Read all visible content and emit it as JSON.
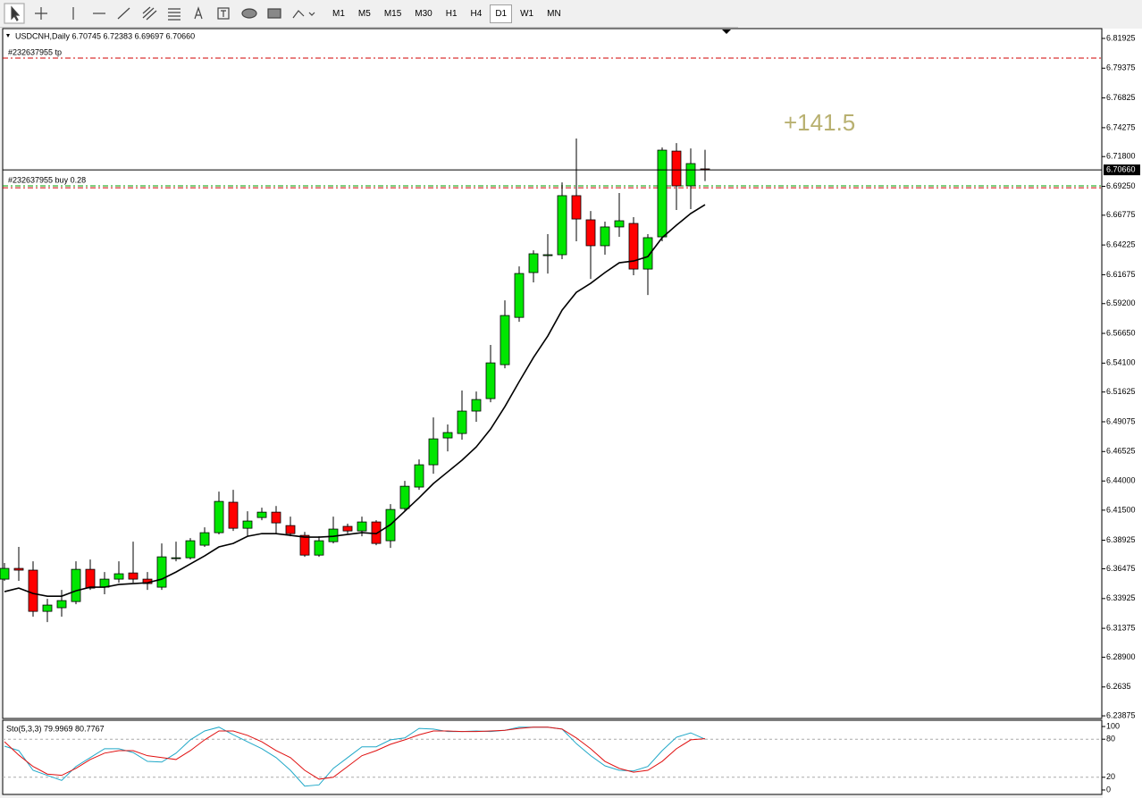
{
  "toolbar": {
    "timeframes": [
      "M1",
      "M5",
      "M15",
      "M30",
      "H1",
      "H4",
      "D1",
      "W1",
      "MN"
    ],
    "active_index": 6
  },
  "chart_data": [
    {
      "type": "candlestick",
      "title": "USDCNH,Daily 6.70745 6.72383 6.69697 6.70660",
      "annotation": "+141.5",
      "ylim": [
        6.2365,
        6.8269
      ],
      "yticks": [
        6.81925,
        6.79375,
        6.76825,
        6.74275,
        {
          "value": 6.718,
          "label": "6.71800"
        },
        {
          "value": 6.6925,
          "label": "6.69250"
        },
        6.66775,
        6.64225,
        6.61675,
        {
          "value": 6.592,
          "label": "6.59200"
        },
        {
          "value": 6.5665,
          "label": "6.56650"
        },
        {
          "value": 6.541,
          "label": "6.54100"
        },
        6.51625,
        6.49075,
        6.46525,
        {
          "value": 6.44,
          "label": "6.44000"
        },
        {
          "value": 6.415,
          "label": "6.41500"
        },
        6.38925,
        6.36475,
        6.33925,
        6.31375,
        {
          "value": 6.289,
          "label": "6.28900"
        },
        6.2635,
        6.23875
      ],
      "up_color": "#00e600",
      "down_color": "#ff0000",
      "open": [
        6.3559,
        6.3651,
        6.3636,
        6.3283,
        6.3314,
        6.3367,
        6.3643,
        6.349,
        6.3559,
        6.3612,
        6.3559,
        6.349,
        6.3735,
        6.3742,
        6.385,
        6.3957,
        6.4218,
        6.3995,
        6.4087,
        6.4133,
        6.4018,
        6.3934,
        6.3765,
        6.388,
        6.4011,
        6.3972,
        6.4049,
        6.3888,
        6.4164,
        6.4348,
        6.4539,
        6.4769,
        6.4807,
        6.4999,
        6.5106,
        6.5397,
        6.5802,
        6.6186,
        6.6331,
        6.6339,
        6.6845,
        6.6638,
        6.6416,
        6.6577,
        6.6607,
        6.6216,
        6.6492,
        6.7227,
        6.6929,
        6.70745
      ],
      "high": [
        6.3697,
        6.3835,
        6.3712,
        6.339,
        6.3467,
        6.3712,
        6.3727,
        6.362,
        6.3712,
        6.388,
        6.362,
        6.3865,
        6.388,
        6.3911,
        6.4003,
        6.4309,
        6.4324,
        6.4141,
        6.4171,
        6.4186,
        6.4095,
        6.3964,
        6.3926,
        6.4095,
        6.4034,
        6.4095,
        6.4064,
        6.4202,
        6.4401,
        6.4585,
        6.4945,
        6.4884,
        6.5175,
        6.5167,
        6.5566,
        6.5948,
        6.6239,
        6.6377,
        6.6515,
        6.6959,
        6.7335,
        6.6714,
        6.6623,
        6.6868,
        6.6661,
        6.6515,
        6.7258,
        6.7296,
        6.725,
        6.72383
      ],
      "low": [
        6.3544,
        6.3544,
        6.3237,
        6.3191,
        6.3237,
        6.3344,
        6.3467,
        6.3429,
        6.3528,
        6.3528,
        6.3467,
        6.3467,
        6.3712,
        6.3727,
        6.3835,
        6.3942,
        6.3972,
        6.3926,
        6.4064,
        6.3942,
        6.3926,
        6.375,
        6.375,
        6.3865,
        6.3949,
        6.3926,
        6.385,
        6.3827,
        6.4141,
        6.4324,
        6.4462,
        6.4654,
        6.4754,
        6.4907,
        6.5075,
        6.5366,
        6.5764,
        6.6102,
        6.6178,
        6.6301,
        6.6454,
        6.6132,
        6.6339,
        6.6492,
        6.6163,
        6.5994,
        6.6454,
        6.6722,
        6.673,
        6.69697
      ],
      "close": [
        6.3651,
        6.3636,
        6.3283,
        6.3337,
        6.3375,
        6.3643,
        6.3482,
        6.3559,
        6.3605,
        6.3559,
        6.3521,
        6.375,
        6.3742,
        6.3888,
        6.3957,
        6.4225,
        6.3995,
        6.4057,
        6.4133,
        6.4041,
        6.3949,
        6.3765,
        6.3888,
        6.3988,
        6.3972,
        6.4049,
        6.3865,
        6.4156,
        6.4355,
        6.4539,
        6.4761,
        6.4815,
        6.4999,
        6.5098,
        6.5412,
        6.5818,
        6.6178,
        6.6347,
        6.6339,
        6.6845,
        6.6645,
        6.6416,
        6.6577,
        6.663,
        6.6216,
        6.6485,
        6.7235,
        6.6929,
        6.712,
        6.7066
      ],
      "ma": {
        "color": "#000000",
        "values": [
          6.3452,
          6.3482,
          6.3436,
          6.3413,
          6.3413,
          6.3459,
          6.349,
          6.349,
          6.3513,
          6.3521,
          6.3528,
          6.3559,
          6.362,
          6.3689,
          6.3758,
          6.3835,
          6.3865,
          6.3926,
          6.3949,
          6.3949,
          6.3934,
          6.3919,
          6.3919,
          6.3926,
          6.3942,
          6.3957,
          6.3949,
          6.4026,
          6.4141,
          6.4256,
          6.4378,
          6.4478,
          6.4578,
          6.4692,
          6.4845,
          6.5037,
          6.5251,
          6.5458,
          6.5642,
          6.5864,
          6.6017,
          6.6094,
          6.6186,
          6.627,
          6.6285,
          6.6323,
          6.6485,
          6.6592,
          6.6692,
          6.6768
        ]
      },
      "levels": [
        {
          "label": "#232637955 tp",
          "value": 6.8024,
          "color": "#d00000"
        },
        {
          "label": "#232637955 buy 0.28",
          "value": 6.6929,
          "color": "#00a000"
        },
        {
          "value": 6.6913,
          "color": "#d00000"
        }
      ],
      "last_price": {
        "value": 6.7066,
        "label": "6.70660"
      }
    },
    {
      "type": "line",
      "title": "Sto(5,3,3) 79.9969 80.7767",
      "ylim": [
        0,
        100
      ],
      "yticks": [
        100,
        80,
        20,
        0
      ],
      "series": [
        {
          "color": "#20a8c8",
          "values": [
            69,
            62,
            31,
            23,
            15,
            37,
            51,
            65,
            65,
            59,
            45,
            44,
            58,
            79,
            93,
            99,
            87,
            76,
            65,
            51,
            31,
            6,
            8,
            34,
            51,
            68,
            68,
            79,
            82,
            97,
            96,
            92,
            92,
            93,
            92,
            94,
            99,
            99,
            99,
            96,
            73,
            54,
            38,
            31,
            30,
            37,
            62,
            83,
            90,
            79.9969
          ]
        },
        {
          "color": "#e01010",
          "values": [
            76,
            55,
            37,
            25,
            23,
            34,
            48,
            58,
            62,
            62,
            54,
            51,
            48,
            62,
            79,
            93,
            93,
            86,
            76,
            62,
            51,
            31,
            17,
            20,
            37,
            54,
            62,
            72,
            79,
            87,
            93,
            93,
            92,
            92,
            93,
            94,
            97,
            99,
            99,
            96,
            82,
            65,
            45,
            34,
            28,
            31,
            45,
            65,
            79,
            80.7767
          ]
        }
      ]
    }
  ]
}
